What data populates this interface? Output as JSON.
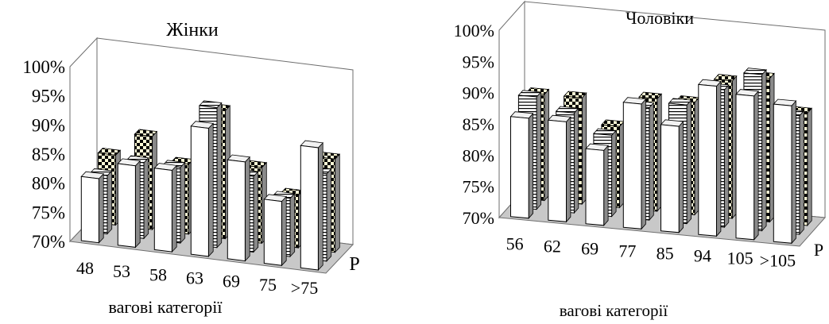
{
  "colors": {
    "floor": "#c8c8c8",
    "wall_line": "#6e6e6e",
    "bar_plain_face": "#ffffff",
    "bar_side": "#8a8a8a",
    "bar_top": "#f2f2f2",
    "bar_stripe": "#000000",
    "bar_check_a": "#fffbd6",
    "bar_check_b": "#000000"
  },
  "chart_data": [
    {
      "type": "bar",
      "subtype": "3d-clustered-bar",
      "title": "Жінки",
      "xlabel": "вагові категорії",
      "depth_label": "P",
      "ylim": [
        0.7,
        1.0
      ],
      "yticks": [
        "70%",
        "75%",
        "80%",
        "85%",
        "90%",
        "95%",
        "100%"
      ],
      "categories": [
        "48",
        "53",
        "58",
        "63",
        "69",
        "75",
        ">75"
      ],
      "series": [
        {
          "pattern": "plain",
          "values": [
            0.81,
            0.84,
            0.84,
            0.92,
            0.87,
            0.81,
            0.91
          ]
        },
        {
          "pattern": "striped",
          "values": [
            0.8,
            0.83,
            0.83,
            0.94,
            0.83,
            0.8,
            0.85
          ]
        },
        {
          "pattern": "checkered",
          "values": [
            0.82,
            0.86,
            0.82,
            0.92,
            0.83,
            0.79,
            0.86
          ]
        }
      ]
    },
    {
      "type": "bar",
      "subtype": "3d-clustered-bar",
      "title": "Чоловіки",
      "xlabel": "вагові категорії",
      "depth_label": "P",
      "ylim": [
        0.7,
        1.0
      ],
      "yticks": [
        "70%",
        "75%",
        "80%",
        "85%",
        "90%",
        "95%",
        "100%"
      ],
      "categories": [
        "56",
        "62",
        "69",
        "77",
        "85",
        "94",
        "105",
        ">105"
      ],
      "series": [
        {
          "pattern": "plain",
          "values": [
            0.86,
            0.86,
            0.82,
            0.9,
            0.87,
            0.94,
            0.93,
            0.92
          ]
        },
        {
          "pattern": "striped",
          "values": [
            0.88,
            0.86,
            0.83,
            0.88,
            0.89,
            0.92,
            0.95,
            0.89
          ]
        },
        {
          "pattern": "checkered",
          "values": [
            0.87,
            0.87,
            0.83,
            0.88,
            0.88,
            0.92,
            0.93,
            0.88
          ]
        }
      ]
    }
  ]
}
